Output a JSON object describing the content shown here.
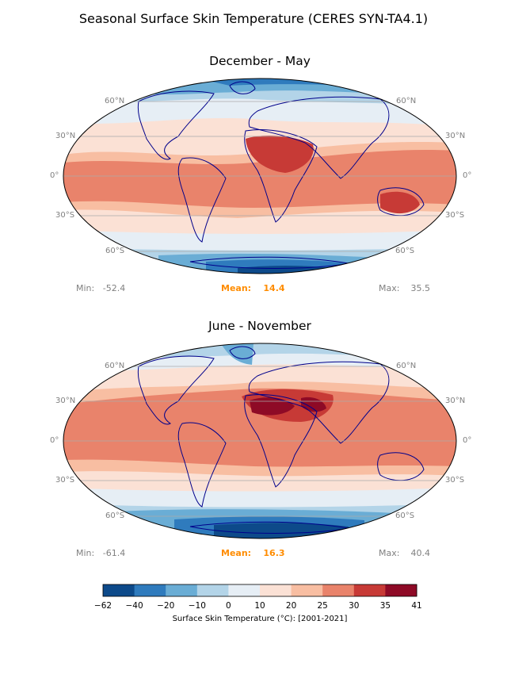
{
  "suptitle": "Seasonal Surface Skin Temperature  (CERES SYN-TA4.1)",
  "panels": [
    {
      "title": "December - May",
      "min_label": "Min:",
      "min_value": "-52.4",
      "mean_label": "Mean:",
      "mean_value": "14.4",
      "max_label": "Max:",
      "max_value": "35.5"
    },
    {
      "title": "June - November",
      "min_label": "Min:",
      "min_value": "-61.4",
      "mean_label": "Mean:",
      "mean_value": "16.3",
      "max_label": "Max:",
      "max_value": "40.4"
    }
  ],
  "lat_labels": {
    "n60": "60°N",
    "n30": "30°N",
    "eq": "0°",
    "s30": "30°S",
    "s60": "60°S"
  },
  "colorbar": {
    "ticks": [
      "−62",
      "−40",
      "−20",
      "−10",
      "0",
      "10",
      "20",
      "25",
      "30",
      "35",
      "41"
    ],
    "colors": [
      "#0d4a8a",
      "#2f7bbd",
      "#6aadd5",
      "#b3d4e8",
      "#e6eef5",
      "#fbe1d5",
      "#f8bea2",
      "#e9836b",
      "#c73a36",
      "#8e0a26"
    ],
    "label": "Surface Skin Temperature (°C): [2001-2021]"
  }
}
